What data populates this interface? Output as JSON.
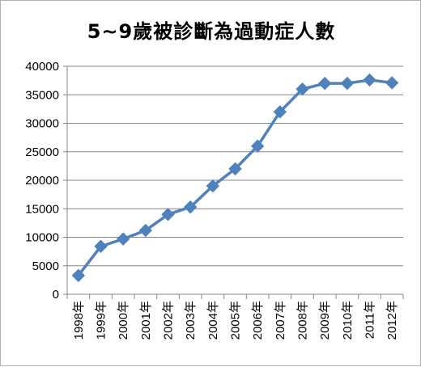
{
  "chart_data": {
    "type": "line",
    "title": "5~9歲被診斷為過動症人數",
    "categories": [
      "1998年",
      "1999年",
      "2000年",
      "2001年",
      "2002年",
      "2003年",
      "2004年",
      "2005年",
      "2006年",
      "2007年",
      "2008年",
      "2009年",
      "2010年",
      "2011年",
      "2012年"
    ],
    "series": [
      {
        "values": [
          3300,
          8400,
          9700,
          11200,
          14000,
          15300,
          19000,
          22000,
          26000,
          32000,
          36000,
          37000,
          37000,
          37600,
          37100
        ],
        "color": "#4f81bd",
        "marker": "diamond"
      }
    ],
    "ylim": [
      0,
      40000
    ],
    "yticks": [
      0,
      5000,
      10000,
      15000,
      20000,
      25000,
      30000,
      35000,
      40000
    ],
    "grid": true,
    "legend": "none"
  }
}
